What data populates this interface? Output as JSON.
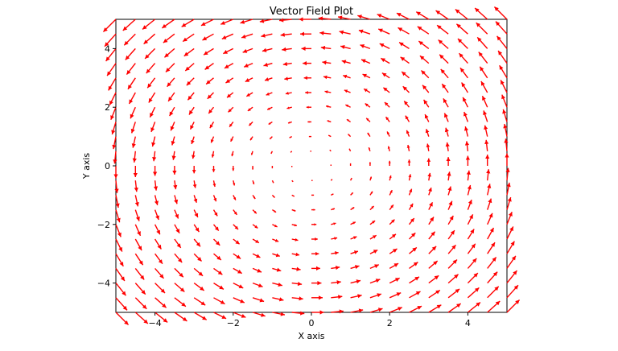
{
  "chart_data": {
    "type": "quiver",
    "title": "Vector Field Plot",
    "xlabel": "X axis",
    "ylabel": "Y axis",
    "xlim": [
      -5,
      5
    ],
    "ylim": [
      -5,
      5
    ],
    "x_ticks": [
      -4,
      -2,
      0,
      2,
      4
    ],
    "y_ticks": [
      -4,
      -2,
      0,
      2,
      4
    ],
    "x_tick_labels": [
      "−4",
      "−2",
      "0",
      "2",
      "4"
    ],
    "y_tick_labels": [
      "−4",
      "−2",
      "0",
      "2",
      "4"
    ],
    "grid": false,
    "arrow_color": "#ff0000",
    "field": {
      "u": "-y",
      "v": "x",
      "description": "counter-clockwise rotation around origin"
    },
    "x_samples": [
      -5.0,
      -4.5,
      -4.0,
      -3.5,
      -3.0,
      -2.5,
      -2.0,
      -1.5,
      -1.0,
      -0.5,
      0.0,
      0.5,
      1.0,
      1.5,
      2.0,
      2.5,
      3.0,
      3.5,
      4.0,
      4.5,
      5.0
    ],
    "y_samples": [
      -5.0,
      -4.5,
      -4.0,
      -3.5,
      -3.0,
      -2.5,
      -2.0,
      -1.5,
      -1.0,
      -0.5,
      0.0,
      0.5,
      1.0,
      1.5,
      2.0,
      2.5,
      3.0,
      3.5,
      4.0,
      4.5,
      5.0
    ]
  }
}
